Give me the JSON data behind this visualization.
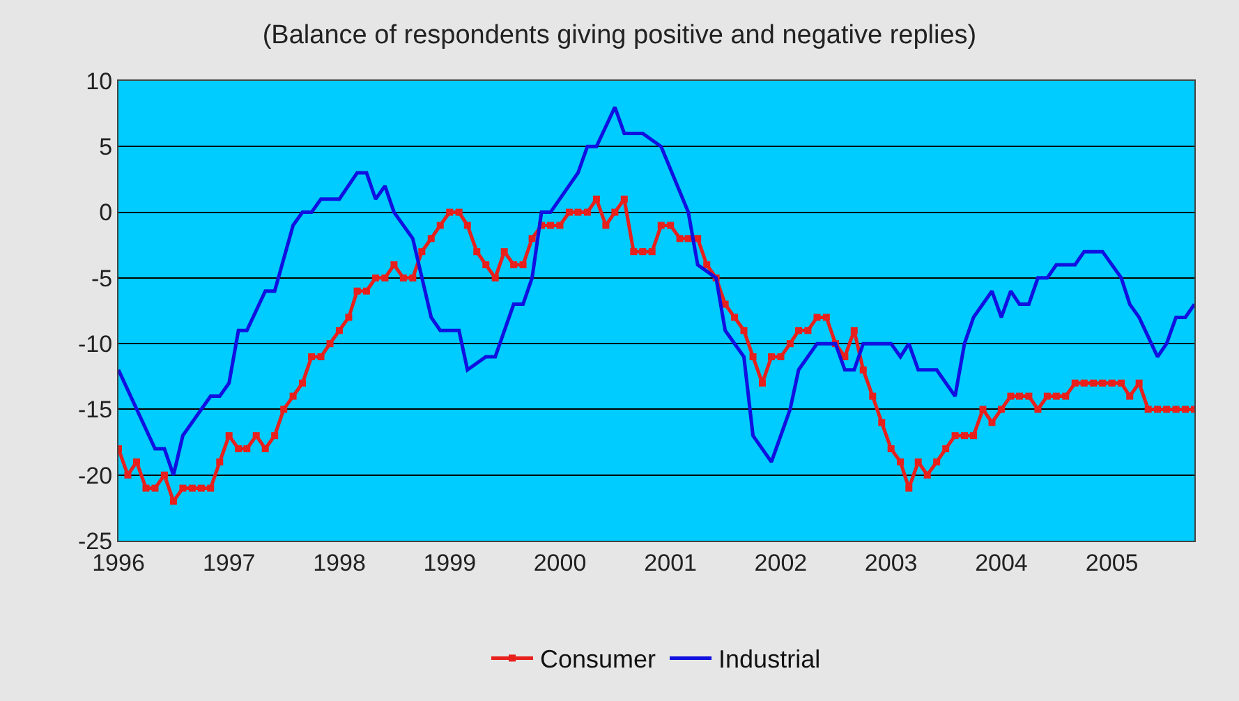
{
  "chart_data": {
    "type": "line",
    "title": "(Balance of respondents giving positive and negative replies)",
    "xlim": [
      "1996-01-01",
      "2005-10-01"
    ],
    "xticks": [
      {
        "value": "1996-01-01",
        "label": "1996"
      },
      {
        "value": "1997-01-01",
        "label": "1997"
      },
      {
        "value": "1998-01-01",
        "label": "1998"
      },
      {
        "value": "1999-01-01",
        "label": "1999"
      },
      {
        "value": "2000-01-01",
        "label": "2000"
      },
      {
        "value": "2001-01-01",
        "label": "2001"
      },
      {
        "value": "2002-01-01",
        "label": "2002"
      },
      {
        "value": "2003-01-01",
        "label": "2003"
      },
      {
        "value": "2004-01-01",
        "label": "2004"
      },
      {
        "value": "2005-01-01",
        "label": "2005"
      }
    ],
    "ylim": [
      -25,
      10
    ],
    "yticks": [
      -25,
      -20,
      -15,
      -10,
      -5,
      0,
      5,
      10
    ],
    "grid": "y",
    "legend": "bottom",
    "series": [
      {
        "name": "Consumer",
        "color": "#e8201c",
        "marker": "square",
        "line_style": "solid",
        "x": [
          "1996-01",
          "1996-02",
          "1996-03",
          "1996-04",
          "1996-05",
          "1996-06",
          "1996-07",
          "1996-08",
          "1996-09",
          "1996-10",
          "1996-11",
          "1996-12",
          "1997-01",
          "1997-02",
          "1997-03",
          "1997-04",
          "1997-05",
          "1997-06",
          "1997-07",
          "1997-08",
          "1997-09",
          "1997-10",
          "1997-11",
          "1997-12",
          "1998-01",
          "1998-02",
          "1998-03",
          "1998-04",
          "1998-05",
          "1998-06",
          "1998-07",
          "1998-08",
          "1998-09",
          "1998-10",
          "1998-11",
          "1998-12",
          "1999-01",
          "1999-02",
          "1999-03",
          "1999-04",
          "1999-05",
          "1999-06",
          "1999-07",
          "1999-08",
          "1999-09",
          "1999-10",
          "1999-11",
          "1999-12",
          "2000-01",
          "2000-02",
          "2000-03",
          "2000-04",
          "2000-05",
          "2000-06",
          "2000-07",
          "2000-08",
          "2000-09",
          "2000-10",
          "2000-11",
          "2000-12",
          "2001-01",
          "2001-02",
          "2001-03",
          "2001-04",
          "2001-05",
          "2001-06",
          "2001-07",
          "2001-08",
          "2001-09",
          "2001-10",
          "2001-11",
          "2001-12",
          "2002-01",
          "2002-02",
          "2002-03",
          "2002-04",
          "2002-05",
          "2002-06",
          "2002-07",
          "2002-08",
          "2002-09",
          "2002-10",
          "2002-11",
          "2002-12",
          "2003-01",
          "2003-02",
          "2003-03",
          "2003-04",
          "2003-05",
          "2003-06",
          "2003-07",
          "2003-08",
          "2003-09",
          "2003-10",
          "2003-11",
          "2003-12",
          "2004-01",
          "2004-02",
          "2004-03",
          "2004-04",
          "2004-05",
          "2004-06",
          "2004-07",
          "2004-08",
          "2004-09",
          "2004-10",
          "2004-11",
          "2004-12",
          "2005-01",
          "2005-02",
          "2005-03",
          "2005-04",
          "2005-05",
          "2005-06",
          "2005-07",
          "2005-08",
          "2005-09",
          "2005-10"
        ],
        "values": [
          -18,
          -20,
          -19,
          -21,
          -21,
          -20,
          -22,
          -21,
          -21,
          -21,
          -21,
          -19,
          -17,
          -18,
          -18,
          -17,
          -18,
          -17,
          -15,
          -14,
          -13,
          -11,
          -11,
          -10,
          -9,
          -8,
          -6,
          -6,
          -5,
          -5,
          -4,
          -5,
          -5,
          -3,
          -2,
          -1,
          0,
          0,
          -1,
          -3,
          -4,
          -5,
          -3,
          -4,
          -4,
          -2,
          -1,
          -1,
          -1,
          0,
          0,
          0,
          1,
          -1,
          0,
          1,
          -3,
          -3,
          -3,
          -1,
          -1,
          -2,
          -2,
          -2,
          -4,
          -5,
          -7,
          -8,
          -9,
          -11,
          -13,
          -11,
          -11,
          -10,
          -9,
          -9,
          -8,
          -8,
          -10,
          -11,
          -9,
          -12,
          -14,
          -16,
          -18,
          -19,
          -21,
          -19,
          -20,
          -19,
          -18,
          -17,
          -17,
          -17,
          -15,
          -16,
          -15,
          -14,
          -14,
          -14,
          -15,
          -14,
          -14,
          -14,
          -13,
          -13,
          -13,
          -13,
          -13,
          -13,
          -14,
          -13,
          -15,
          -15,
          -15,
          -15,
          -15,
          -15
        ]
      },
      {
        "name": "Industrial",
        "color": "#1010e0",
        "marker": "none",
        "line_style": "solid",
        "x": [
          "1996-01",
          "1996-05",
          "1996-06",
          "1996-07",
          "1996-08",
          "1996-11",
          "1996-12",
          "1997-01",
          "1997-02",
          "1997-03",
          "1997-05",
          "1997-06",
          "1997-08",
          "1997-09",
          "1997-10",
          "1997-11",
          "1998-01",
          "1998-03",
          "1998-04",
          "1998-05",
          "1998-06",
          "1998-07",
          "1998-09",
          "1998-11",
          "1998-12",
          "1999-02",
          "1999-03",
          "1999-05",
          "1999-06",
          "1999-08",
          "1999-09",
          "1999-10",
          "1999-11",
          "1999-12",
          "2000-03",
          "2000-04",
          "2000-05",
          "2000-07",
          "2000-08",
          "2000-10",
          "2000-12",
          "2001-03",
          "2001-04",
          "2001-06",
          "2001-07",
          "2001-09",
          "2001-10",
          "2001-12",
          "2002-02",
          "2002-03",
          "2002-05",
          "2002-07",
          "2002-08",
          "2002-09",
          "2002-10",
          "2003-01",
          "2003-02",
          "2003-03",
          "2003-04",
          "2003-06",
          "2003-08",
          "2003-09",
          "2003-10",
          "2003-12",
          "2004-01",
          "2004-02",
          "2004-03",
          "2004-04",
          "2004-05",
          "2004-06",
          "2004-07",
          "2004-09",
          "2004-10",
          "2004-12",
          "2005-02",
          "2005-03",
          "2005-04",
          "2005-06",
          "2005-07",
          "2005-08",
          "2005-09",
          "2005-10"
        ],
        "values": [
          -12,
          -18,
          -18,
          -20,
          -17,
          -14,
          -14,
          -13,
          -9,
          -9,
          -6,
          -6,
          -1,
          0,
          0,
          1,
          1,
          3,
          3,
          1,
          2,
          0,
          -2,
          -8,
          -9,
          -9,
          -12,
          -11,
          -11,
          -7,
          -7,
          -5,
          0,
          0,
          3,
          5,
          5,
          8,
          6,
          6,
          5,
          0,
          -4,
          -5,
          -9,
          -11,
          -17,
          -19,
          -15,
          -12,
          -10,
          -10,
          -12,
          -12,
          -10,
          -10,
          -11,
          -10,
          -12,
          -12,
          -14,
          -10,
          -8,
          -6,
          -8,
          -6,
          -7,
          -7,
          -5,
          -5,
          -4,
          -4,
          -3,
          -3,
          -5,
          -7,
          -8,
          -11,
          -10,
          -8,
          -8,
          -7
        ]
      }
    ]
  }
}
